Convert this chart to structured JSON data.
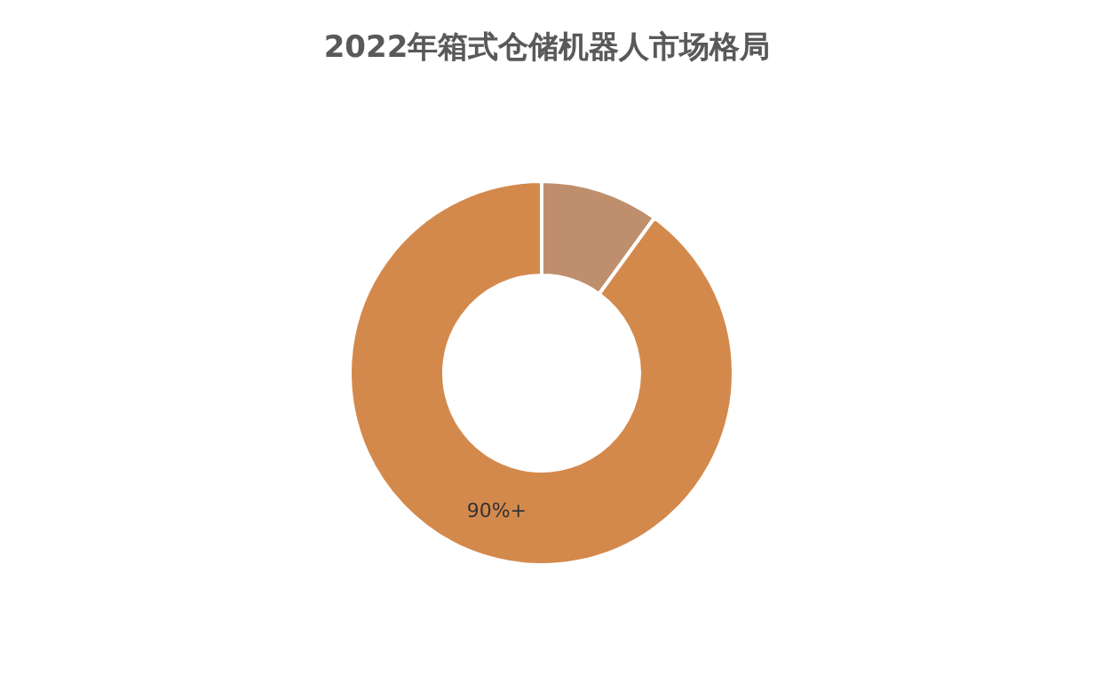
{
  "chart_data": {
    "type": "donut",
    "title": "2022年箱式仓储机器人市场格局",
    "categories": [
      null,
      null
    ],
    "values": [
      10,
      90
    ],
    "colors": [
      "#bf8f6d",
      "#d4894c"
    ],
    "value_labels": [
      null,
      "90%+"
    ],
    "legend": false
  }
}
